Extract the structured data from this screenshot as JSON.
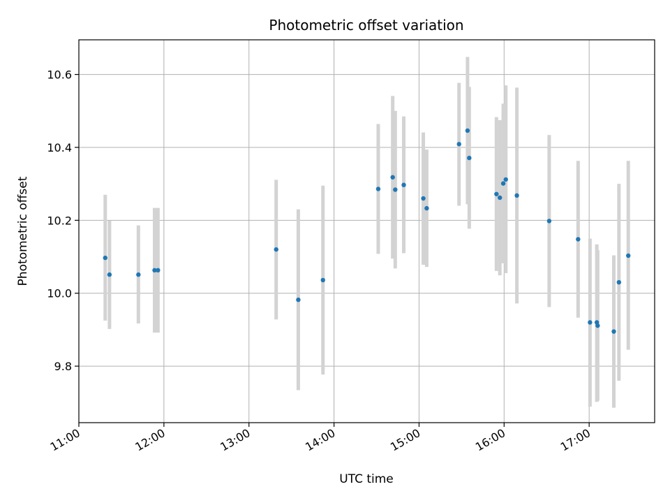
{
  "chart_data": {
    "type": "scatter",
    "title": "Photometric offset variation",
    "xlabel": "UTC time",
    "ylabel": "Photometric offset",
    "x_unit": "hour",
    "xlim": [
      11.0,
      17.77
    ],
    "ylim": [
      9.645,
      10.695
    ],
    "xticks": [
      11,
      12,
      13,
      14,
      15,
      16,
      17
    ],
    "xtick_labels": [
      "11:00",
      "12:00",
      "13:00",
      "14:00",
      "15:00",
      "16:00",
      "17:00"
    ],
    "yticks": [
      9.8,
      10.0,
      10.2,
      10.4,
      10.6
    ],
    "ytick_labels": [
      "9.8",
      "10.0",
      "10.2",
      "10.4",
      "10.6"
    ],
    "grid": true,
    "colors": {
      "point": "#1f77b4",
      "errorbar": "#d3d3d3",
      "grid": "#b0b0b0"
    },
    "series": [
      {
        "points": [
          {
            "x": 11.31,
            "y": 10.097,
            "lo": 9.925,
            "hi": 10.27
          },
          {
            "x": 11.36,
            "y": 10.051,
            "lo": 9.902,
            "hi": 10.199
          },
          {
            "x": 11.7,
            "y": 10.051,
            "lo": 9.917,
            "hi": 10.186
          },
          {
            "x": 11.89,
            "y": 10.063,
            "lo": 9.892,
            "hi": 10.234
          },
          {
            "x": 11.93,
            "y": 10.063,
            "lo": 9.892,
            "hi": 10.234
          },
          {
            "x": 13.32,
            "y": 10.12,
            "lo": 9.928,
            "hi": 10.311
          },
          {
            "x": 13.58,
            "y": 9.982,
            "lo": 9.734,
            "hi": 10.23
          },
          {
            "x": 13.87,
            "y": 10.036,
            "lo": 9.777,
            "hi": 10.295
          },
          {
            "x": 14.52,
            "y": 10.286,
            "lo": 10.108,
            "hi": 10.464
          },
          {
            "x": 14.69,
            "y": 10.318,
            "lo": 10.095,
            "hi": 10.541
          },
          {
            "x": 14.72,
            "y": 10.284,
            "lo": 10.068,
            "hi": 10.5
          },
          {
            "x": 14.82,
            "y": 10.297,
            "lo": 10.11,
            "hi": 10.485
          },
          {
            "x": 15.05,
            "y": 10.26,
            "lo": 10.078,
            "hi": 10.441
          },
          {
            "x": 15.09,
            "y": 10.233,
            "lo": 10.072,
            "hi": 10.394
          },
          {
            "x": 15.47,
            "y": 10.409,
            "lo": 10.24,
            "hi": 10.577
          },
          {
            "x": 15.57,
            "y": 10.446,
            "lo": 10.244,
            "hi": 10.648
          },
          {
            "x": 15.59,
            "y": 10.371,
            "lo": 10.177,
            "hi": 10.566
          },
          {
            "x": 15.91,
            "y": 10.272,
            "lo": 10.061,
            "hi": 10.483
          },
          {
            "x": 15.95,
            "y": 10.262,
            "lo": 10.049,
            "hi": 10.475
          },
          {
            "x": 15.99,
            "y": 10.301,
            "lo": 10.082,
            "hi": 10.52
          },
          {
            "x": 16.02,
            "y": 10.312,
            "lo": 10.055,
            "hi": 10.57
          },
          {
            "x": 16.15,
            "y": 10.268,
            "lo": 9.972,
            "hi": 10.564
          },
          {
            "x": 16.53,
            "y": 10.198,
            "lo": 9.962,
            "hi": 10.434
          },
          {
            "x": 16.87,
            "y": 10.148,
            "lo": 9.933,
            "hi": 10.363
          },
          {
            "x": 17.01,
            "y": 9.92,
            "lo": 9.689,
            "hi": 10.15
          },
          {
            "x": 17.09,
            "y": 9.92,
            "lo": 9.702,
            "hi": 10.134
          },
          {
            "x": 17.1,
            "y": 9.911,
            "lo": 9.705,
            "hi": 10.118
          },
          {
            "x": 17.29,
            "y": 9.895,
            "lo": 9.686,
            "hi": 10.104
          },
          {
            "x": 17.35,
            "y": 10.03,
            "lo": 9.76,
            "hi": 10.3
          },
          {
            "x": 17.46,
            "y": 10.103,
            "lo": 9.845,
            "hi": 10.363
          }
        ]
      }
    ]
  }
}
